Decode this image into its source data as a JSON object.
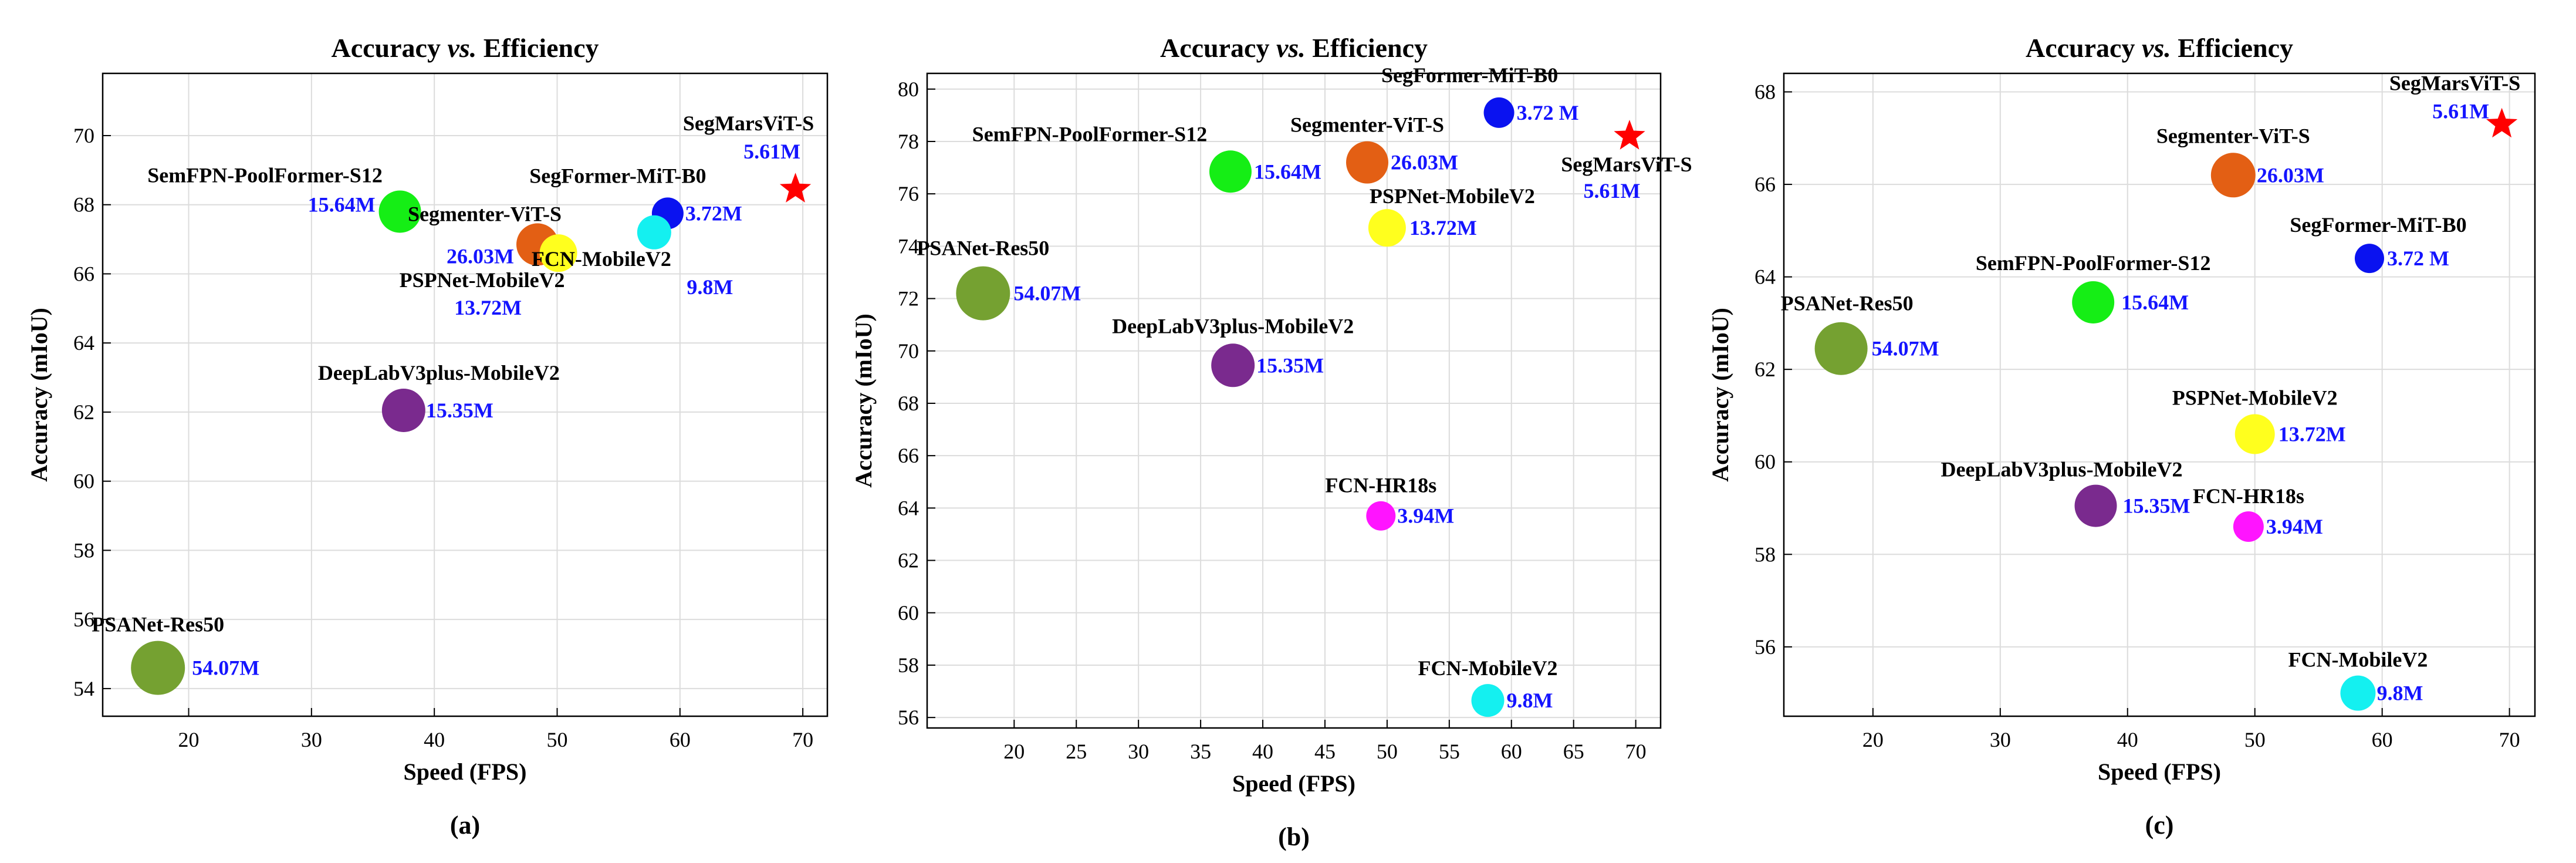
{
  "chart_data": [
    {
      "type": "scatter",
      "panel_label": "(a)",
      "title": {
        "pre": "Accuracy ",
        "italic": "vs.",
        "post": " Efficiency"
      },
      "xlabel": "Speed (FPS)",
      "ylabel": "Accuracy (mIoU)",
      "xlim": [
        13,
        72
      ],
      "ylim": [
        53.2,
        71.8
      ],
      "xticks": [
        20,
        30,
        40,
        50,
        60,
        70
      ],
      "yticks": [
        54,
        56,
        58,
        60,
        62,
        64,
        66,
        68,
        70
      ],
      "grid": true,
      "points": [
        {
          "model": "SemFPN-PoolFormer-S12",
          "fps": 37.2,
          "miou": 67.8,
          "params": "15.64M",
          "color": "#15ee15",
          "marker": "circle"
        },
        {
          "model": "Segmenter-ViT-S",
          "fps": 48.4,
          "miou": 66.85,
          "params": "26.03M",
          "color": "#e35f14",
          "marker": "circle"
        },
        {
          "model": "PSPNet-MobileV2",
          "fps": 50.1,
          "miou": 66.6,
          "params": "13.72M",
          "color": "#ffff1e",
          "marker": "circle"
        },
        {
          "model": "SegFormer-MiT-B0",
          "fps": 59.0,
          "miou": 67.75,
          "params": "3.72M",
          "color": "#0a12f0",
          "marker": "circle"
        },
        {
          "model": "FCN-MobileV2",
          "fps": 57.9,
          "miou": 67.2,
          "params": "9.8M",
          "color": "#14f0f0",
          "marker": "circle"
        },
        {
          "model": "SegMarsViT-S",
          "fps": 69.4,
          "miou": 68.45,
          "params": "5.61M",
          "color": "#ff0000",
          "marker": "star"
        },
        {
          "model": "DeepLabV3plus-MobileV2",
          "fps": 37.5,
          "miou": 62.05,
          "params": "15.35M",
          "color": "#7a2a8e",
          "marker": "circle"
        },
        {
          "model": "PSANet-Res50",
          "fps": 17.5,
          "miou": 54.6,
          "params": "54.07M",
          "color": "#75a131",
          "marker": "circle"
        }
      ]
    },
    {
      "type": "scatter",
      "panel_label": "(b)",
      "title": {
        "pre": "Accuracy ",
        "italic": "vs.",
        "post": " Efficiency"
      },
      "xlabel": "Speed (FPS)",
      "ylabel": "Accuracy (mIoU)",
      "xlim": [
        13,
        72
      ],
      "ylim": [
        55.6,
        80.6
      ],
      "xticks": [
        20,
        25,
        30,
        35,
        40,
        45,
        50,
        55,
        60,
        65,
        70
      ],
      "yticks": [
        56,
        58,
        60,
        62,
        64,
        66,
        68,
        70,
        72,
        74,
        76,
        78,
        80
      ],
      "grid": true,
      "points": [
        {
          "model": "SegFormer-MiT-B0",
          "fps": 59.0,
          "miou": 79.1,
          "params": "3.72 M",
          "color": "#0a12f0",
          "marker": "circle"
        },
        {
          "model": "SegMarsViT-S",
          "fps": 69.5,
          "miou": 78.2,
          "params": "5.61M",
          "color": "#ff0000",
          "marker": "star"
        },
        {
          "model": "Segmenter-ViT-S",
          "fps": 48.4,
          "miou": 77.2,
          "params": "26.03M",
          "color": "#e35f14",
          "marker": "circle"
        },
        {
          "model": "SemFPN-PoolFormer-S12",
          "fps": 37.4,
          "miou": 76.85,
          "params": "15.64M",
          "color": "#15ee15",
          "marker": "circle"
        },
        {
          "model": "PSPNet-MobileV2",
          "fps": 50.0,
          "miou": 74.7,
          "params": "13.72M",
          "color": "#ffff1e",
          "marker": "circle"
        },
        {
          "model": "PSANet-Res50",
          "fps": 17.5,
          "miou": 72.2,
          "params": "54.07M",
          "color": "#75a131",
          "marker": "circle"
        },
        {
          "model": "DeepLabV3plus-MobileV2",
          "fps": 37.6,
          "miou": 69.45,
          "params": "15.35M",
          "color": "#7a2a8e",
          "marker": "circle"
        },
        {
          "model": "FCN-HR18s",
          "fps": 49.5,
          "miou": 63.7,
          "params": "3.94M",
          "color": "#ff14ff",
          "marker": "circle"
        },
        {
          "model": "FCN-MobileV2",
          "fps": 58.1,
          "miou": 56.65,
          "params": "9.8M",
          "color": "#14f0f0",
          "marker": "circle"
        }
      ]
    },
    {
      "type": "scatter",
      "panel_label": "(c)",
      "title": {
        "pre": "Accuracy ",
        "italic": "vs.",
        "post": " Efficiency"
      },
      "xlabel": "Speed (FPS)",
      "ylabel": "Accuracy (mIoU)",
      "xlim": [
        13,
        72
      ],
      "ylim": [
        54.5,
        68.4
      ],
      "xticks": [
        20,
        30,
        40,
        50,
        60,
        70
      ],
      "yticks": [
        56,
        58,
        60,
        62,
        64,
        66,
        68
      ],
      "grid": true,
      "points": [
        {
          "model": "SegMarsViT-S",
          "fps": 69.4,
          "miou": 67.3,
          "params": "5.61M",
          "color": "#ff0000",
          "marker": "star"
        },
        {
          "model": "Segmenter-ViT-S",
          "fps": 48.3,
          "miou": 66.2,
          "params": "26.03M",
          "color": "#e35f14",
          "marker": "circle"
        },
        {
          "model": "SegFormer-MiT-B0",
          "fps": 59.0,
          "miou": 64.4,
          "params": "3.72 M",
          "color": "#0a12f0",
          "marker": "circle"
        },
        {
          "model": "SemFPN-PoolFormer-S12",
          "fps": 37.3,
          "miou": 63.45,
          "params": "15.64M",
          "color": "#15ee15",
          "marker": "circle"
        },
        {
          "model": "PSANet-Res50",
          "fps": 17.5,
          "miou": 62.45,
          "params": "54.07M",
          "color": "#75a131",
          "marker": "circle"
        },
        {
          "model": "PSPNet-MobileV2",
          "fps": 50.0,
          "miou": 60.6,
          "params": "13.72M",
          "color": "#ffff1e",
          "marker": "circle"
        },
        {
          "model": "DeepLabV3plus-MobileV2",
          "fps": 37.5,
          "miou": 59.05,
          "params": "15.35M",
          "color": "#7a2a8e",
          "marker": "circle"
        },
        {
          "model": "FCN-HR18s",
          "fps": 49.5,
          "miou": 58.6,
          "params": "3.94M",
          "color": "#ff14ff",
          "marker": "circle"
        },
        {
          "model": "FCN-MobileV2",
          "fps": 58.1,
          "miou": 55.0,
          "params": "9.8M",
          "color": "#14f0f0",
          "marker": "circle"
        }
      ]
    }
  ]
}
